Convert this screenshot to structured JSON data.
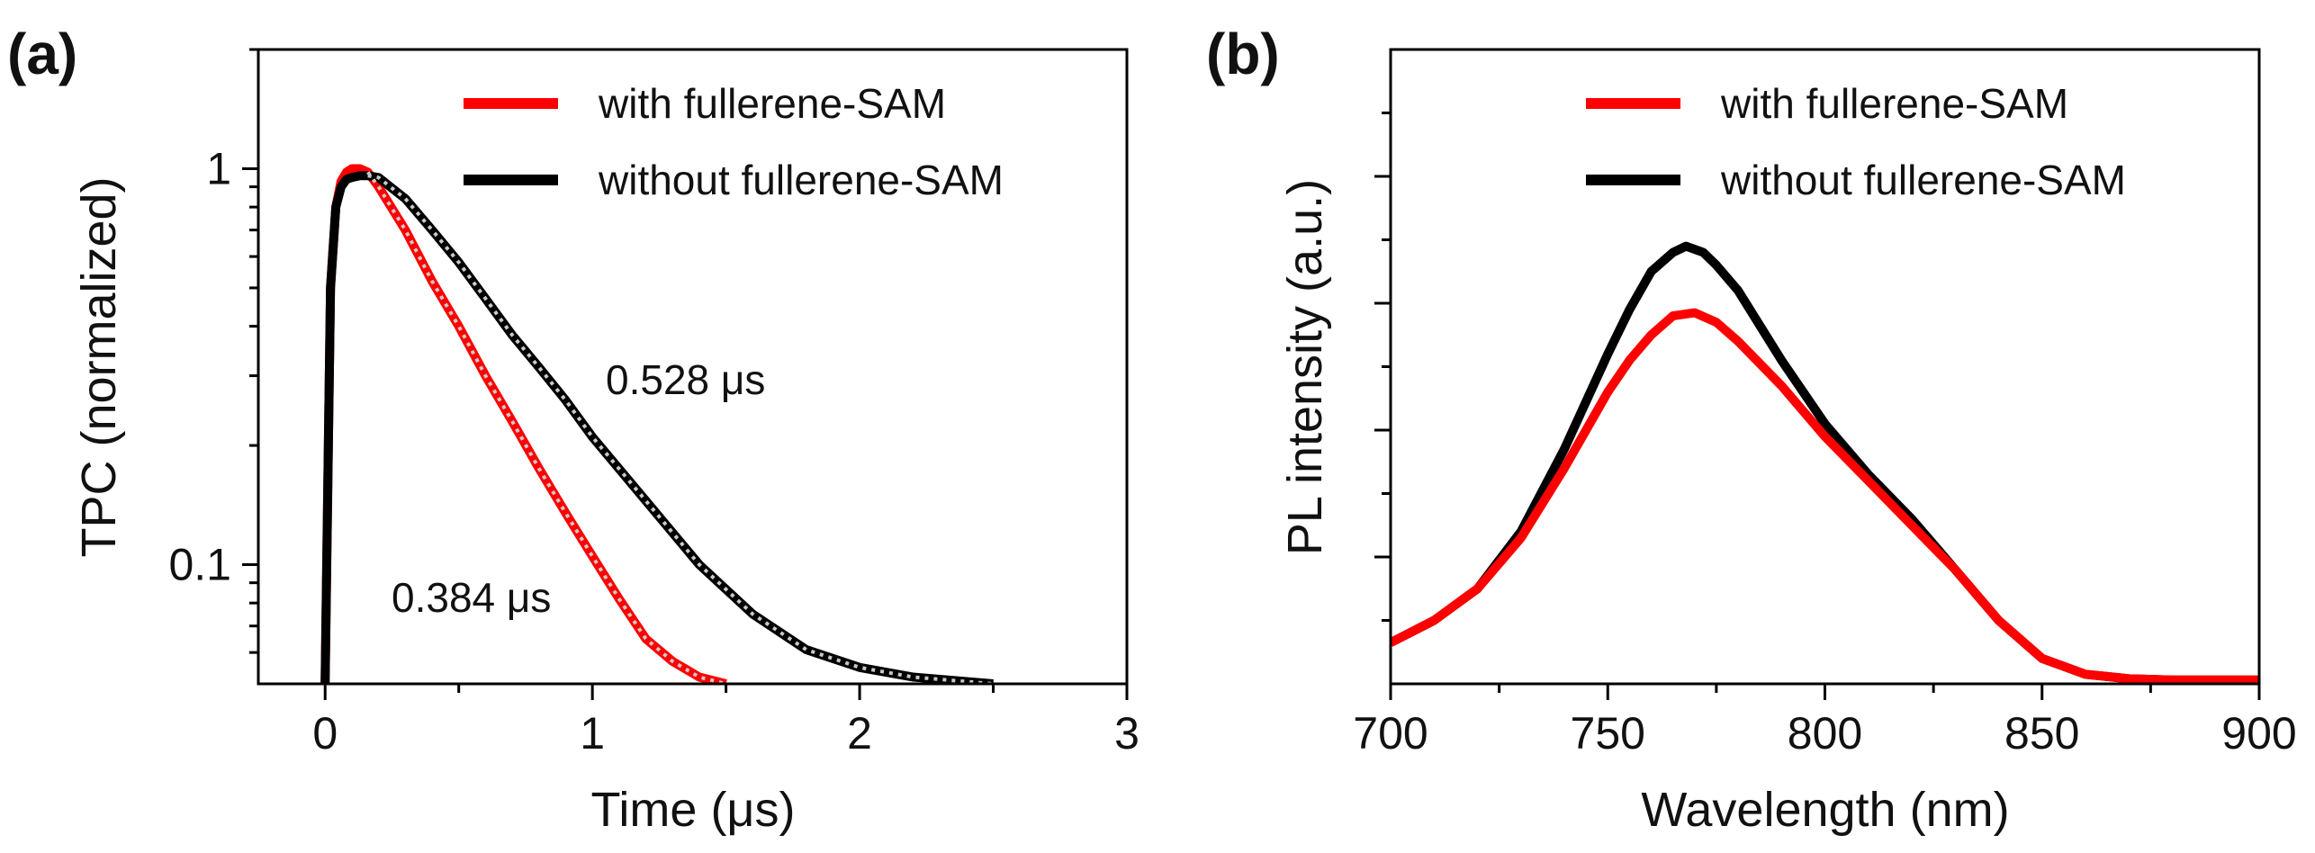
{
  "chart_data": [
    {
      "panel": "(a)",
      "type": "line",
      "xlabel": "Time (μs)",
      "ylabel": "TPC (normalized)",
      "xlim": [
        -0.25,
        3
      ],
      "ylim": [
        0.05,
        2
      ],
      "yscale": "log",
      "xticks": [
        0,
        1,
        2,
        3
      ],
      "xtick_labels": [
        "0",
        "1",
        "2",
        "3"
      ],
      "yticks": [
        0.1,
        1
      ],
      "ytick_labels": [
        "0.1",
        "1"
      ],
      "legend_position": "top-right",
      "series": [
        {
          "name": "with fullerene-SAM",
          "color": "#ff0000",
          "x": [
            0.0,
            0.02,
            0.04,
            0.06,
            0.08,
            0.1,
            0.13,
            0.16,
            0.2,
            0.3,
            0.4,
            0.5,
            0.6,
            0.7,
            0.8,
            0.9,
            1.0,
            1.1,
            1.2,
            1.3,
            1.4,
            1.5
          ],
          "y": [
            0.05,
            0.5,
            0.8,
            0.93,
            0.98,
            1.0,
            1.0,
            0.98,
            0.9,
            0.7,
            0.52,
            0.4,
            0.3,
            0.23,
            0.175,
            0.135,
            0.105,
            0.082,
            0.065,
            0.057,
            0.052,
            0.05
          ],
          "decay_time_label": "0.384 μs"
        },
        {
          "name": "without fullerene-SAM",
          "color": "#000000",
          "x": [
            0.0,
            0.02,
            0.04,
            0.06,
            0.08,
            0.1,
            0.13,
            0.16,
            0.2,
            0.3,
            0.4,
            0.5,
            0.6,
            0.7,
            0.8,
            0.9,
            1.0,
            1.2,
            1.4,
            1.6,
            1.8,
            2.0,
            2.2,
            2.5
          ],
          "y": [
            0.05,
            0.5,
            0.8,
            0.9,
            0.94,
            0.95,
            0.96,
            0.96,
            0.95,
            0.84,
            0.7,
            0.58,
            0.47,
            0.38,
            0.315,
            0.26,
            0.21,
            0.145,
            0.1,
            0.075,
            0.061,
            0.055,
            0.052,
            0.05
          ],
          "decay_time_label": "0.528 μs"
        }
      ],
      "fit_line_color": "#c8c8c8"
    },
    {
      "panel": "(b)",
      "type": "line",
      "xlabel": "Wavelength (nm)",
      "ylabel": "PL intensity (a.u.)",
      "xlim": [
        700,
        900
      ],
      "ylim": [
        0,
        1
      ],
      "xticks": [
        700,
        750,
        800,
        850,
        900
      ],
      "xtick_labels": [
        "700",
        "750",
        "800",
        "850",
        "900"
      ],
      "ytick_values": [
        0.2,
        0.4,
        0.6,
        0.8
      ],
      "legend_position": "top-right",
      "series": [
        {
          "name": "with fullerene-SAM",
          "color": "#ff0000",
          "x": [
            700,
            710,
            720,
            730,
            740,
            750,
            755,
            760,
            765,
            770,
            775,
            780,
            790,
            800,
            810,
            820,
            830,
            840,
            850,
            860,
            870,
            880,
            890,
            900
          ],
          "y": [
            0.065,
            0.1,
            0.15,
            0.23,
            0.34,
            0.46,
            0.51,
            0.55,
            0.58,
            0.585,
            0.57,
            0.54,
            0.47,
            0.39,
            0.32,
            0.25,
            0.18,
            0.1,
            0.04,
            0.015,
            0.008,
            0.006,
            0.006,
            0.006
          ]
        },
        {
          "name": "without fullerene-SAM",
          "color": "#000000",
          "x": [
            700,
            710,
            720,
            730,
            740,
            750,
            755,
            760,
            765,
            768,
            772,
            775,
            780,
            790,
            800,
            810,
            820,
            830,
            840,
            850,
            860,
            870,
            880,
            890,
            900
          ],
          "y": [
            0.065,
            0.1,
            0.15,
            0.24,
            0.37,
            0.52,
            0.59,
            0.65,
            0.68,
            0.69,
            0.68,
            0.66,
            0.62,
            0.51,
            0.41,
            0.33,
            0.26,
            0.18,
            0.1,
            0.04,
            0.015,
            0.008,
            0.006,
            0.006,
            0.006
          ]
        }
      ]
    }
  ]
}
